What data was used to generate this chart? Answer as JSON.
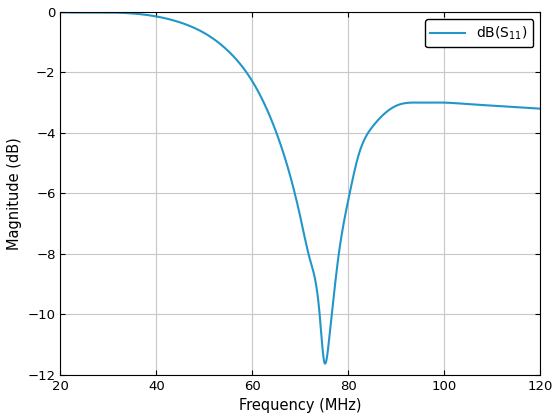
{
  "xlabel": "Frequency (MHz)",
  "ylabel": "Magnitude (dB)",
  "legend_label": "dB(S$_{11}$)",
  "xlim": [
    20,
    120
  ],
  "ylim": [
    -12,
    0
  ],
  "xticks": [
    20,
    40,
    60,
    80,
    100,
    120
  ],
  "yticks": [
    0,
    -2,
    -4,
    -6,
    -8,
    -10,
    -12
  ],
  "line_color": "#2196C8",
  "line_width": 1.5,
  "grid_color": "#C8C8C8",
  "background_color": "#FFFFFF",
  "knots_x": [
    20,
    30,
    35,
    40,
    45,
    50,
    55,
    60,
    65,
    68,
    70,
    72,
    74,
    75,
    76,
    78,
    80,
    82,
    85,
    88,
    90,
    95,
    100,
    105,
    110,
    115,
    120
  ],
  "knots_y": [
    -0.01,
    -0.02,
    -0.05,
    -0.15,
    -0.35,
    -0.7,
    -1.3,
    -2.3,
    -4.0,
    -5.5,
    -6.8,
    -8.2,
    -10.0,
    -11.6,
    -10.8,
    -8.0,
    -6.2,
    -4.8,
    -3.8,
    -3.3,
    -3.1,
    -3.0,
    -3.0,
    -3.05,
    -3.1,
    -3.15,
    -3.2
  ]
}
